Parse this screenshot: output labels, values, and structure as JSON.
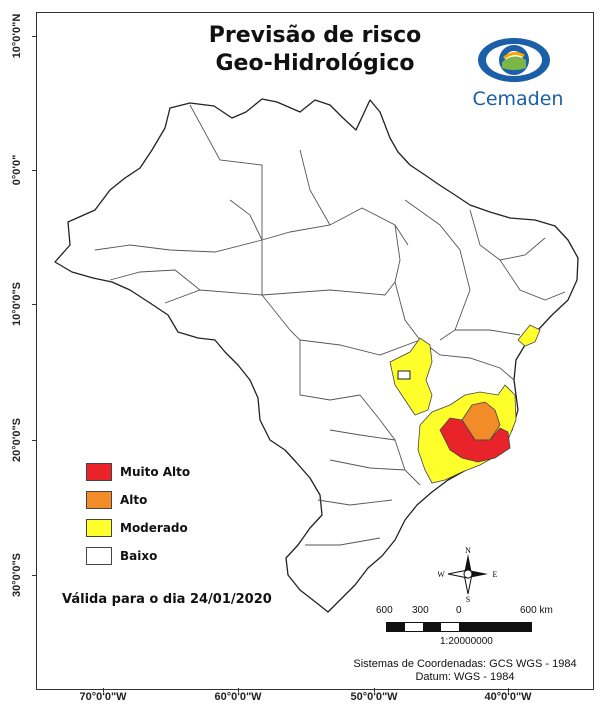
{
  "title": {
    "line1": "Previsão de risco",
    "line2": "Geo-Hidrológico"
  },
  "logo": {
    "text": "Cemaden",
    "icon": "eye-logo-icon",
    "color": "#1a5fa8"
  },
  "grid_labels": {
    "latitudes": [
      "10°0'0\"N",
      "0°0'0\"",
      "10°0'0\"S",
      "20°0'0\"S",
      "30°0'0\"S"
    ],
    "longitudes": [
      "70°0'0\"W",
      "60°0'0\"W",
      "50°0'0\"W",
      "40°0'0\"W"
    ]
  },
  "legend": {
    "items": [
      {
        "label": "Muito Alto",
        "color": "#e8232a"
      },
      {
        "label": "Alto",
        "color": "#f28c28"
      },
      {
        "label": "Moderado",
        "color": "#ffff2b"
      },
      {
        "label": "Baixo",
        "color": "#ffffff"
      }
    ]
  },
  "validity": "Válida para o dia 24/01/2020",
  "compass": {
    "n": "N",
    "s": "S",
    "e": "E",
    "w": "W"
  },
  "scale": {
    "labels": [
      "600",
      "300",
      "0",
      "600 km"
    ],
    "ratio": "1:20000000"
  },
  "crs": {
    "line1": "Sistemas de Coordenadas: GCS WGS - 1984",
    "line2": "Datum: WGS - 1984"
  }
}
